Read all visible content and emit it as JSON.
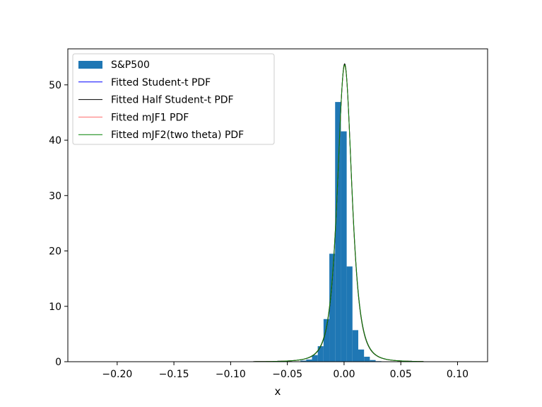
{
  "chart_data": {
    "type": "bar",
    "title": "",
    "xlabel": "x",
    "ylabel": "",
    "xlim": [
      -0.2435,
      0.1265
    ],
    "ylim": [
      0,
      56.5
    ],
    "xticks": [
      -0.2,
      -0.15,
      -0.1,
      -0.05,
      0.0,
      0.05,
      0.1
    ],
    "xtick_labels": [
      "−0.20",
      "−0.15",
      "−0.10",
      "−0.05",
      "0.00",
      "0.05",
      "0.10"
    ],
    "yticks": [
      0,
      10,
      20,
      30,
      40,
      50
    ],
    "ytick_labels": [
      "0",
      "10",
      "20",
      "30",
      "40",
      "50"
    ],
    "grid": false,
    "legend_position": "top-left",
    "histogram": {
      "name": "S&P500",
      "color": "#1f77b4",
      "bin_width": 0.0051,
      "bins": [
        {
          "x": -0.0385,
          "height": 0.2
        },
        {
          "x": -0.0334,
          "height": 0.4
        },
        {
          "x": -0.0283,
          "height": 1.2
        },
        {
          "x": -0.0232,
          "height": 2.8
        },
        {
          "x": -0.0181,
          "height": 7.7
        },
        {
          "x": -0.013,
          "height": 19.5
        },
        {
          "x": -0.0079,
          "height": 46.9
        },
        {
          "x": -0.0028,
          "height": 41.6
        },
        {
          "x": 0.0023,
          "height": 17.2
        },
        {
          "x": 0.0074,
          "height": 5.7
        },
        {
          "x": 0.0125,
          "height": 2.2
        },
        {
          "x": 0.0176,
          "height": 0.9
        },
        {
          "x": 0.0227,
          "height": 0.3
        },
        {
          "x": 0.0278,
          "height": 0.1
        }
      ]
    },
    "series": [
      {
        "name": "Fitted Student-t PDF",
        "color": "#0000ff",
        "peak": 53.6,
        "peak_x": 0.0005,
        "scale": 0.0067,
        "nu": 3.0
      },
      {
        "name": "Fitted Half Student-t PDF",
        "color": "#000000",
        "peak": 53.8,
        "peak_x": 0.0005,
        "scale": 0.0066,
        "nu": 3.0
      },
      {
        "name": "Fitted mJF1 PDF",
        "color": "#ff6b6b",
        "peak": 53.5,
        "peak_x": 0.0005,
        "scale": 0.0067,
        "nu": 3.0
      },
      {
        "name": "Fitted mJF2(two theta) PDF",
        "color": "#008000",
        "peak": 53.6,
        "peak_x": 0.0005,
        "scale": 0.0067,
        "nu": 3.0
      }
    ]
  }
}
